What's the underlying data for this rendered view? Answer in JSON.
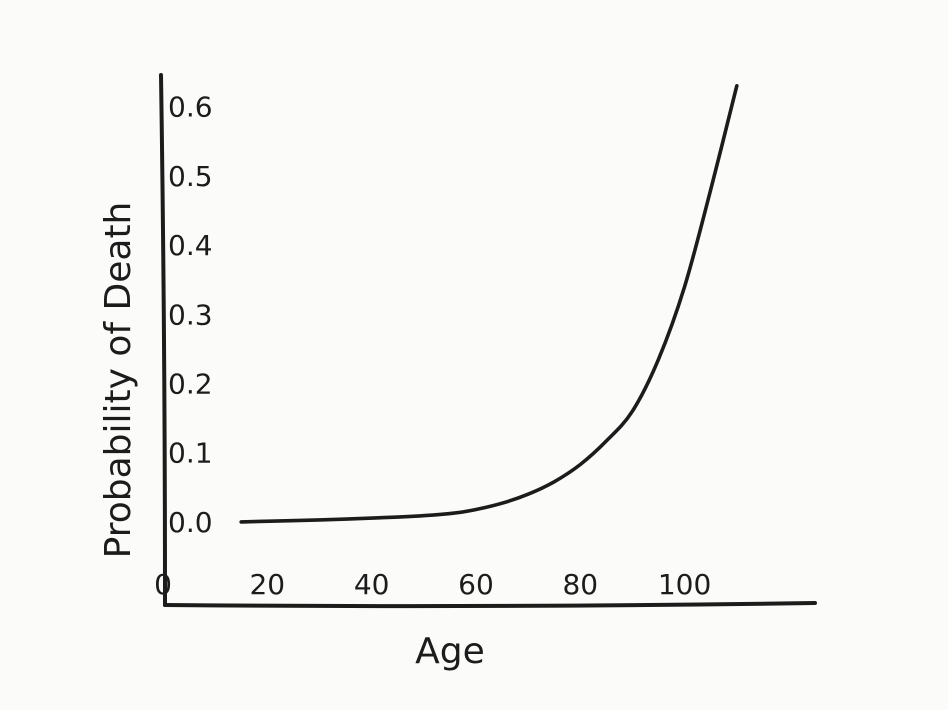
{
  "chart_data": {
    "type": "line",
    "title": "",
    "xlabel": "Age",
    "ylabel": "Probability of Death",
    "x_ticks": [
      "0",
      "20",
      "40",
      "60",
      "80",
      "100"
    ],
    "y_ticks": [
      "0.0",
      "0.1",
      "0.2",
      "0.3",
      "0.4",
      "0.5",
      "0.6"
    ],
    "x_tick_values": [
      0,
      20,
      40,
      60,
      80,
      100
    ],
    "y_tick_values": [
      0,
      0.1,
      0.2,
      0.3,
      0.4,
      0.5,
      0.6
    ],
    "xlim": [
      0,
      125
    ],
    "ylim": [
      -0.12,
      0.65
    ],
    "grid": false,
    "series": [
      {
        "x": [
          15,
          30,
          45,
          55,
          60,
          65,
          70,
          75,
          80,
          85,
          90,
          95,
          100,
          105,
          110
        ],
        "y": [
          0.0,
          0.003,
          0.007,
          0.012,
          0.018,
          0.027,
          0.04,
          0.058,
          0.083,
          0.117,
          0.16,
          0.235,
          0.34,
          0.48,
          0.63
        ]
      }
    ]
  }
}
